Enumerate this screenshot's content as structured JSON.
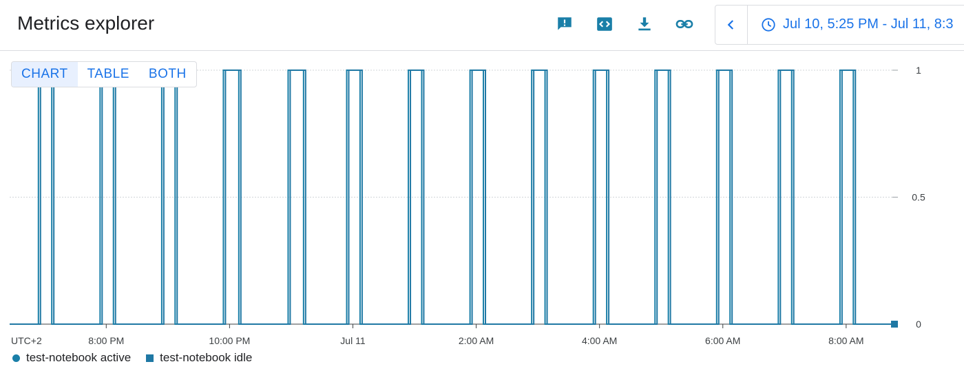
{
  "header": {
    "title": "Metrics explorer",
    "icons": [
      "feedback-icon",
      "code-icon",
      "download-icon",
      "link-icon"
    ]
  },
  "time_picker": {
    "range_label": "Jul 10, 5:25 PM - Jul 11, 8:3",
    "prev_icon": "chevron-left-icon",
    "clock_icon": "clock-icon"
  },
  "view_toggle": {
    "options": [
      "CHART",
      "TABLE",
      "BOTH"
    ],
    "selected": "CHART"
  },
  "colors": {
    "accent": "#1a73e8",
    "series_active": "#1a7fa8",
    "series_idle": "#1f78a4",
    "grid": "#d0d4d8"
  },
  "chart_data": {
    "type": "line",
    "step": true,
    "timezone_label": "UTC+2",
    "xlim": [
      "2023-07-10T18:26",
      "2023-07-11T08:45"
    ],
    "ylim": [
      0,
      1
    ],
    "y_ticks": [
      0,
      0.5,
      1
    ],
    "y_tick_labels": [
      "0",
      "0.5",
      "1"
    ],
    "x_ticks": [
      {
        "t": "2023-07-10T20:00",
        "label": "8:00 PM"
      },
      {
        "t": "2023-07-10T22:00",
        "label": "10:00 PM"
      },
      {
        "t": "2023-07-11T00:00",
        "label": "Jul 11"
      },
      {
        "t": "2023-07-11T02:00",
        "label": "2:00 AM"
      },
      {
        "t": "2023-07-11T04:00",
        "label": "4:00 AM"
      },
      {
        "t": "2023-07-11T06:00",
        "label": "6:00 AM"
      },
      {
        "t": "2023-07-11T08:00",
        "label": "8:00 AM"
      }
    ],
    "series": [
      {
        "name": "test-notebook active",
        "marker": "circle",
        "pulses": [
          [
            "2023-07-10T18:54",
            "2023-07-10T19:07"
          ],
          [
            "2023-07-10T19:54",
            "2023-07-10T20:07"
          ],
          [
            "2023-07-10T20:54",
            "2023-07-10T21:07"
          ],
          [
            "2023-07-10T21:54",
            "2023-07-10T22:09"
          ],
          [
            "2023-07-10T22:57",
            "2023-07-10T23:12"
          ],
          [
            "2023-07-10T23:54",
            "2023-07-11T00:07"
          ],
          [
            "2023-07-11T00:54",
            "2023-07-11T01:07"
          ],
          [
            "2023-07-11T01:54",
            "2023-07-11T02:07"
          ],
          [
            "2023-07-11T02:54",
            "2023-07-11T03:07"
          ],
          [
            "2023-07-11T03:54",
            "2023-07-11T04:07"
          ],
          [
            "2023-07-11T04:54",
            "2023-07-11T05:07"
          ],
          [
            "2023-07-11T05:54",
            "2023-07-11T06:07"
          ],
          [
            "2023-07-11T06:54",
            "2023-07-11T07:07"
          ],
          [
            "2023-07-11T07:54",
            "2023-07-11T08:07"
          ]
        ]
      },
      {
        "name": "test-notebook idle",
        "marker": "square",
        "pulses": [
          [
            "2023-07-10T18:56",
            "2023-07-10T19:09"
          ],
          [
            "2023-07-10T19:56",
            "2023-07-10T20:09"
          ],
          [
            "2023-07-10T20:56",
            "2023-07-10T21:09"
          ],
          [
            "2023-07-10T21:56",
            "2023-07-10T22:11"
          ],
          [
            "2023-07-10T22:59",
            "2023-07-10T23:14"
          ],
          [
            "2023-07-10T23:56",
            "2023-07-11T00:09"
          ],
          [
            "2023-07-11T00:56",
            "2023-07-11T01:09"
          ],
          [
            "2023-07-11T01:56",
            "2023-07-11T02:09"
          ],
          [
            "2023-07-11T02:56",
            "2023-07-11T03:09"
          ],
          [
            "2023-07-11T03:56",
            "2023-07-11T04:09"
          ],
          [
            "2023-07-11T04:56",
            "2023-07-11T05:09"
          ],
          [
            "2023-07-11T05:56",
            "2023-07-11T06:09"
          ],
          [
            "2023-07-11T06:56",
            "2023-07-11T07:09"
          ],
          [
            "2023-07-11T07:56",
            "2023-07-11T08:09"
          ]
        ],
        "last_value": 0
      }
    ]
  }
}
